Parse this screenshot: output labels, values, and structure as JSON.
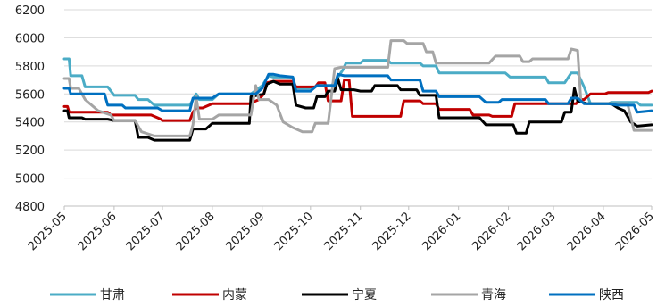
{
  "chart_data": {
    "type": "line",
    "title": "",
    "xlabel": "",
    "ylabel": "",
    "ylim": [
      4800,
      6200
    ],
    "yticks": [
      4800,
      5000,
      5200,
      5400,
      5600,
      5800,
      6000,
      6200
    ],
    "xlim": [
      "2025-05-01",
      "2026-05-01"
    ],
    "xticks": [
      "2025-05",
      "2025-06",
      "2025-07",
      "2025-08",
      "2025-09",
      "2025-10",
      "2025-11",
      "2025-12",
      "2026-01",
      "2026-02",
      "2026-03",
      "2026-04",
      "2026-05"
    ],
    "grid": "horizontal",
    "legend": "bottom",
    "series": [
      {
        "name": "甘肃",
        "color": "#4bacc6",
        "points": [
          [
            "2025-05-01",
            5850
          ],
          [
            "2025-05-04",
            5850
          ],
          [
            "2025-05-05",
            5730
          ],
          [
            "2025-05-12",
            5730
          ],
          [
            "2025-05-14",
            5650
          ],
          [
            "2025-05-28",
            5650
          ],
          [
            "2025-06-01",
            5590
          ],
          [
            "2025-06-14",
            5590
          ],
          [
            "2025-06-16",
            5560
          ],
          [
            "2025-06-22",
            5560
          ],
          [
            "2025-06-26",
            5520
          ],
          [
            "2025-07-18",
            5520
          ],
          [
            "2025-07-20",
            5560
          ],
          [
            "2025-07-22",
            5600
          ],
          [
            "2025-07-24",
            5560
          ],
          [
            "2025-08-01",
            5560
          ],
          [
            "2025-08-05",
            5600
          ],
          [
            "2025-08-25",
            5600
          ],
          [
            "2025-09-01",
            5660
          ],
          [
            "2025-09-05",
            5730
          ],
          [
            "2025-09-08",
            5720
          ],
          [
            "2025-09-20",
            5720
          ],
          [
            "2025-09-22",
            5640
          ],
          [
            "2025-10-01",
            5640
          ],
          [
            "2025-10-06",
            5660
          ],
          [
            "2025-10-14",
            5660
          ],
          [
            "2025-10-17",
            5700
          ],
          [
            "2025-10-21",
            5770
          ],
          [
            "2025-10-23",
            5820
          ],
          [
            "2025-11-01",
            5820
          ],
          [
            "2025-11-03",
            5840
          ],
          [
            "2025-11-18",
            5840
          ],
          [
            "2025-11-20",
            5820
          ],
          [
            "2025-12-08",
            5820
          ],
          [
            "2025-12-10",
            5800
          ],
          [
            "2025-12-18",
            5800
          ],
          [
            "2025-12-20",
            5750
          ],
          [
            "2026-01-30",
            5750
          ],
          [
            "2026-02-02",
            5720
          ],
          [
            "2026-02-24",
            5720
          ],
          [
            "2026-02-26",
            5680
          ],
          [
            "2026-03-08",
            5680
          ],
          [
            "2026-03-12",
            5750
          ],
          [
            "2026-03-16",
            5750
          ],
          [
            "2026-03-18",
            5700
          ],
          [
            "2026-03-20",
            5650
          ],
          [
            "2026-03-24",
            5530
          ],
          [
            "2026-04-04",
            5530
          ],
          [
            "2026-04-06",
            5540
          ],
          [
            "2026-04-22",
            5540
          ],
          [
            "2026-04-24",
            5520
          ],
          [
            "2026-05-01",
            5520
          ]
        ]
      },
      {
        "name": "内蒙",
        "color": "#c00000",
        "points": [
          [
            "2025-05-01",
            5510
          ],
          [
            "2025-05-03",
            5510
          ],
          [
            "2025-05-04",
            5470
          ],
          [
            "2025-05-28",
            5470
          ],
          [
            "2025-05-30",
            5450
          ],
          [
            "2025-06-24",
            5450
          ],
          [
            "2025-06-28",
            5430
          ],
          [
            "2025-06-30",
            5420
          ],
          [
            "2025-07-01",
            5410
          ],
          [
            "2025-07-18",
            5410
          ],
          [
            "2025-07-20",
            5470
          ],
          [
            "2025-07-22",
            5500
          ],
          [
            "2025-07-26",
            5500
          ],
          [
            "2025-08-01",
            5530
          ],
          [
            "2025-08-24",
            5530
          ],
          [
            "2025-08-30",
            5560
          ],
          [
            "2025-09-02",
            5600
          ],
          [
            "2025-09-04",
            5680
          ],
          [
            "2025-09-08",
            5690
          ],
          [
            "2025-09-20",
            5690
          ],
          [
            "2025-09-22",
            5650
          ],
          [
            "2025-10-04",
            5650
          ],
          [
            "2025-10-06",
            5680
          ],
          [
            "2025-10-10",
            5680
          ],
          [
            "2025-10-12",
            5550
          ],
          [
            "2025-10-20",
            5550
          ],
          [
            "2025-10-22",
            5700
          ],
          [
            "2025-10-25",
            5700
          ],
          [
            "2025-10-27",
            5440
          ],
          [
            "2025-11-26",
            5440
          ],
          [
            "2025-11-28",
            5550
          ],
          [
            "2025-12-08",
            5550
          ],
          [
            "2025-12-10",
            5530
          ],
          [
            "2025-12-18",
            5530
          ],
          [
            "2025-12-20",
            5490
          ],
          [
            "2026-01-08",
            5490
          ],
          [
            "2026-01-10",
            5450
          ],
          [
            "2026-01-20",
            5450
          ],
          [
            "2026-01-22",
            5440
          ],
          [
            "2026-02-03",
            5440
          ],
          [
            "2026-02-05",
            5530
          ],
          [
            "2026-03-15",
            5530
          ],
          [
            "2026-03-17",
            5560
          ],
          [
            "2026-03-20",
            5560
          ],
          [
            "2026-03-24",
            5600
          ],
          [
            "2026-04-02",
            5600
          ],
          [
            "2026-04-04",
            5610
          ],
          [
            "2026-04-29",
            5610
          ],
          [
            "2026-05-01",
            5620
          ]
        ]
      },
      {
        "name": "宁夏",
        "color": "#000000",
        "points": [
          [
            "2025-05-01",
            5480
          ],
          [
            "2025-05-03",
            5480
          ],
          [
            "2025-05-04",
            5430
          ],
          [
            "2025-05-12",
            5430
          ],
          [
            "2025-05-14",
            5420
          ],
          [
            "2025-05-28",
            5420
          ],
          [
            "2025-06-01",
            5410
          ],
          [
            "2025-06-14",
            5410
          ],
          [
            "2025-06-16",
            5290
          ],
          [
            "2025-06-22",
            5290
          ],
          [
            "2025-06-26",
            5270
          ],
          [
            "2025-07-18",
            5270
          ],
          [
            "2025-07-20",
            5350
          ],
          [
            "2025-07-28",
            5350
          ],
          [
            "2025-08-01",
            5390
          ],
          [
            "2025-08-24",
            5390
          ],
          [
            "2025-08-25",
            5580
          ],
          [
            "2025-09-02",
            5600
          ],
          [
            "2025-09-04",
            5670
          ],
          [
            "2025-09-08",
            5690
          ],
          [
            "2025-09-12",
            5670
          ],
          [
            "2025-09-20",
            5670
          ],
          [
            "2025-09-22",
            5520
          ],
          [
            "2025-09-28",
            5500
          ],
          [
            "2025-10-03",
            5500
          ],
          [
            "2025-10-05",
            5580
          ],
          [
            "2025-10-10",
            5580
          ],
          [
            "2025-10-12",
            5620
          ],
          [
            "2025-10-16",
            5620
          ],
          [
            "2025-10-18",
            5710
          ],
          [
            "2025-10-20",
            5630
          ],
          [
            "2025-10-28",
            5630
          ],
          [
            "2025-11-01",
            5620
          ],
          [
            "2025-11-08",
            5620
          ],
          [
            "2025-11-10",
            5660
          ],
          [
            "2025-11-24",
            5660
          ],
          [
            "2025-11-26",
            5630
          ],
          [
            "2025-12-06",
            5630
          ],
          [
            "2025-12-08",
            5590
          ],
          [
            "2025-12-18",
            5590
          ],
          [
            "2025-12-20",
            5430
          ],
          [
            "2026-01-14",
            5430
          ],
          [
            "2026-01-18",
            5380
          ],
          [
            "2026-02-04",
            5380
          ],
          [
            "2026-02-06",
            5320
          ],
          [
            "2026-02-12",
            5320
          ],
          [
            "2026-02-14",
            5400
          ],
          [
            "2026-03-06",
            5400
          ],
          [
            "2026-03-08",
            5470
          ],
          [
            "2026-03-12",
            5470
          ],
          [
            "2026-03-14",
            5640
          ],
          [
            "2026-03-16",
            5550
          ],
          [
            "2026-03-22",
            5530
          ],
          [
            "2026-04-06",
            5530
          ],
          [
            "2026-04-10",
            5500
          ],
          [
            "2026-04-14",
            5480
          ],
          [
            "2026-04-18",
            5400
          ],
          [
            "2026-04-22",
            5370
          ],
          [
            "2026-05-01",
            5380
          ]
        ]
      },
      {
        "name": "青海",
        "color": "#a5a5a5",
        "points": [
          [
            "2025-05-01",
            5710
          ],
          [
            "2025-05-04",
            5710
          ],
          [
            "2025-05-05",
            5640
          ],
          [
            "2025-05-10",
            5640
          ],
          [
            "2025-05-14",
            5560
          ],
          [
            "2025-05-22",
            5480
          ],
          [
            "2025-05-30",
            5450
          ],
          [
            "2025-06-01",
            5410
          ],
          [
            "2025-06-14",
            5410
          ],
          [
            "2025-06-18",
            5330
          ],
          [
            "2025-06-26",
            5300
          ],
          [
            "2025-07-18",
            5300
          ],
          [
            "2025-07-20",
            5380
          ],
          [
            "2025-07-22",
            5580
          ],
          [
            "2025-07-24",
            5420
          ],
          [
            "2025-08-01",
            5420
          ],
          [
            "2025-08-05",
            5450
          ],
          [
            "2025-08-25",
            5450
          ],
          [
            "2025-08-28",
            5660
          ],
          [
            "2025-08-30",
            5560
          ],
          [
            "2025-09-05",
            5560
          ],
          [
            "2025-09-10",
            5520
          ],
          [
            "2025-09-14",
            5400
          ],
          [
            "2025-09-20",
            5360
          ],
          [
            "2025-09-26",
            5330
          ],
          [
            "2025-10-02",
            5330
          ],
          [
            "2025-10-04",
            5390
          ],
          [
            "2025-10-12",
            5390
          ],
          [
            "2025-10-16",
            5780
          ],
          [
            "2025-10-20",
            5790
          ],
          [
            "2025-11-18",
            5790
          ],
          [
            "2025-11-20",
            5980
          ],
          [
            "2025-11-28",
            5980
          ],
          [
            "2025-11-30",
            5960
          ],
          [
            "2025-12-10",
            5960
          ],
          [
            "2025-12-12",
            5900
          ],
          [
            "2025-12-16",
            5900
          ],
          [
            "2025-12-18",
            5820
          ],
          [
            "2026-01-20",
            5820
          ],
          [
            "2026-01-24",
            5870
          ],
          [
            "2026-02-08",
            5870
          ],
          [
            "2026-02-10",
            5830
          ],
          [
            "2026-02-14",
            5830
          ],
          [
            "2026-02-16",
            5850
          ],
          [
            "2026-03-05",
            5850
          ],
          [
            "2026-03-10",
            5850
          ],
          [
            "2026-03-12",
            5920
          ],
          [
            "2026-03-16",
            5910
          ],
          [
            "2026-03-18",
            5550
          ],
          [
            "2026-03-20",
            5530
          ],
          [
            "2026-04-16",
            5530
          ],
          [
            "2026-04-20",
            5340
          ],
          [
            "2026-05-01",
            5340
          ]
        ]
      },
      {
        "name": "陕西",
        "color": "#0070c0",
        "points": [
          [
            "2025-05-01",
            5640
          ],
          [
            "2025-05-04",
            5640
          ],
          [
            "2025-05-05",
            5600
          ],
          [
            "2025-05-26",
            5600
          ],
          [
            "2025-05-28",
            5520
          ],
          [
            "2025-06-06",
            5520
          ],
          [
            "2025-06-08",
            5500
          ],
          [
            "2025-06-28",
            5500
          ],
          [
            "2025-07-01",
            5480
          ],
          [
            "2025-07-18",
            5480
          ],
          [
            "2025-07-20",
            5570
          ],
          [
            "2025-08-01",
            5570
          ],
          [
            "2025-08-05",
            5600
          ],
          [
            "2025-08-28",
            5600
          ],
          [
            "2025-09-01",
            5640
          ],
          [
            "2025-09-05",
            5740
          ],
          [
            "2025-09-08",
            5740
          ],
          [
            "2025-09-12",
            5730
          ],
          [
            "2025-09-20",
            5720
          ],
          [
            "2025-09-22",
            5620
          ],
          [
            "2025-10-01",
            5620
          ],
          [
            "2025-10-05",
            5660
          ],
          [
            "2025-10-16",
            5660
          ],
          [
            "2025-10-18",
            5740
          ],
          [
            "2025-10-22",
            5730
          ],
          [
            "2025-11-18",
            5730
          ],
          [
            "2025-11-20",
            5700
          ],
          [
            "2025-12-08",
            5700
          ],
          [
            "2025-12-10",
            5620
          ],
          [
            "2025-12-18",
            5620
          ],
          [
            "2025-12-20",
            5580
          ],
          [
            "2026-01-14",
            5580
          ],
          [
            "2026-01-18",
            5540
          ],
          [
            "2026-01-26",
            5540
          ],
          [
            "2026-01-28",
            5560
          ],
          [
            "2026-02-24",
            5560
          ],
          [
            "2026-02-26",
            5530
          ],
          [
            "2026-03-10",
            5530
          ],
          [
            "2026-03-12",
            5570
          ],
          [
            "2026-03-16",
            5570
          ],
          [
            "2026-03-20",
            5530
          ],
          [
            "2026-04-04",
            5530
          ],
          [
            "2026-04-10",
            5520
          ],
          [
            "2026-04-20",
            5520
          ],
          [
            "2026-04-22",
            5470
          ],
          [
            "2026-05-01",
            5480
          ]
        ]
      }
    ]
  }
}
